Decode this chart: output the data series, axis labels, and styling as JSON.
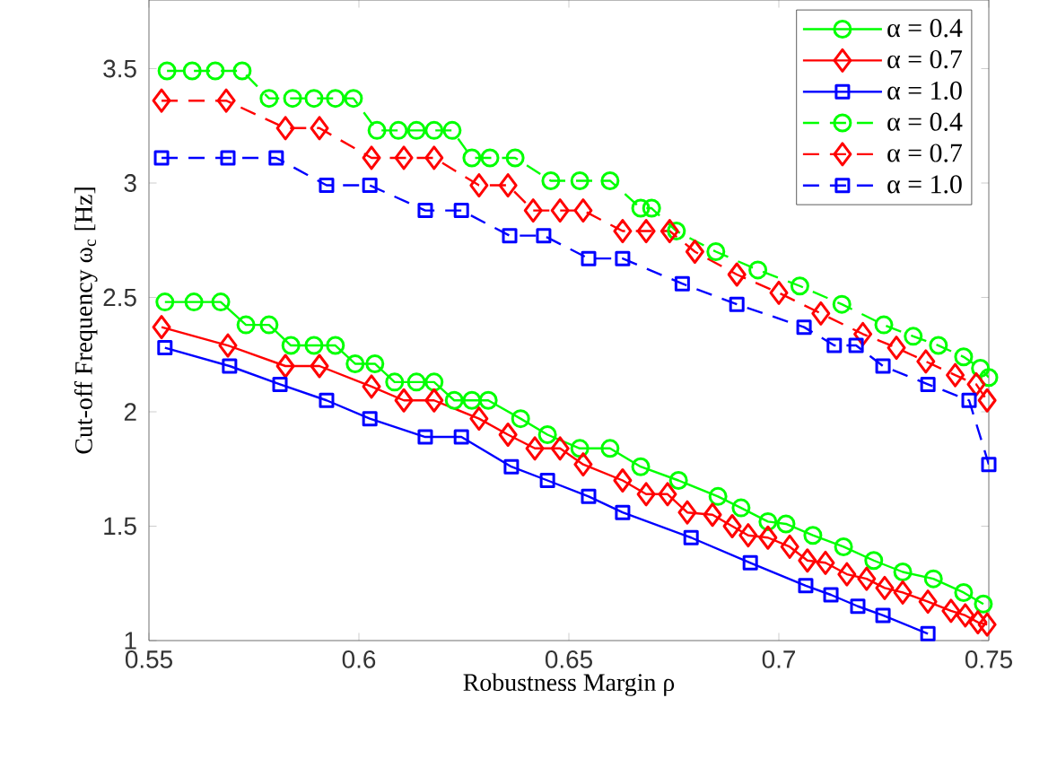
{
  "chart_data": {
    "type": "line",
    "xlabel": "Robustness Margin ρ",
    "ylabel": "Cut-off Frequency ω$_{c}$ [Hz]",
    "xlim": [
      0.55,
      0.75
    ],
    "ylim": [
      1,
      3.8
    ],
    "xticks": [
      0.55,
      0.6,
      0.65,
      0.7,
      0.75
    ],
    "yticks": [
      1,
      1.5,
      2,
      2.5,
      3,
      3.5
    ],
    "grid": false,
    "legend": "top right",
    "series": [
      {
        "name": "α = 0.4",
        "color": "#00ff00",
        "marker": "circle",
        "line_style": "solid",
        "x": [
          0.5538,
          0.5607,
          0.5671,
          0.5731,
          0.5786,
          0.5838,
          0.5893,
          0.5944,
          0.5991,
          0.6038,
          0.6085,
          0.6137,
          0.6179,
          0.6227,
          0.6269,
          0.6308,
          0.6385,
          0.6449,
          0.6526,
          0.6598,
          0.6671,
          0.6761,
          0.6855,
          0.691,
          0.6974,
          0.7017,
          0.7081,
          0.7154,
          0.7226,
          0.7295,
          0.7368,
          0.744,
          0.7487
        ],
        "values": [
          2.48,
          2.48,
          2.48,
          2.38,
          2.38,
          2.29,
          2.29,
          2.29,
          2.21,
          2.21,
          2.13,
          2.13,
          2.13,
          2.05,
          2.05,
          2.05,
          1.97,
          1.9,
          1.84,
          1.84,
          1.76,
          1.7,
          1.63,
          1.58,
          1.52,
          1.51,
          1.46,
          1.41,
          1.35,
          1.3,
          1.27,
          1.21,
          1.16
        ]
      },
      {
        "name": "α = 0.7",
        "color": "#ff0000",
        "marker": "diamond",
        "line_style": "solid",
        "x": [
          0.553,
          0.5688,
          0.5825,
          0.5906,
          0.603,
          0.6107,
          0.6179,
          0.6286,
          0.6355,
          0.6419,
          0.6479,
          0.6534,
          0.6628,
          0.6684,
          0.6735,
          0.6782,
          0.6842,
          0.6889,
          0.6927,
          0.6974,
          0.7026,
          0.7068,
          0.7111,
          0.7162,
          0.7209,
          0.7252,
          0.7295,
          0.7355,
          0.741,
          0.7444,
          0.7474,
          0.7496
        ],
        "values": [
          2.37,
          2.29,
          2.2,
          2.2,
          2.11,
          2.05,
          2.05,
          1.97,
          1.9,
          1.84,
          1.84,
          1.77,
          1.7,
          1.64,
          1.64,
          1.56,
          1.55,
          1.5,
          1.46,
          1.45,
          1.41,
          1.35,
          1.34,
          1.29,
          1.27,
          1.23,
          1.21,
          1.17,
          1.13,
          1.11,
          1.08,
          1.07
        ]
      },
      {
        "name": "α = 1.0",
        "color": "#0000ff",
        "marker": "square",
        "line_style": "solid",
        "x": [
          0.5538,
          0.5692,
          0.5812,
          0.5923,
          0.6026,
          0.6158,
          0.6244,
          0.6363,
          0.6449,
          0.6547,
          0.6628,
          0.6791,
          0.6932,
          0.7064,
          0.7124,
          0.7188,
          0.7248,
          0.7355
        ],
        "values": [
          2.28,
          2.2,
          2.12,
          2.05,
          1.97,
          1.89,
          1.89,
          1.76,
          1.7,
          1.63,
          1.56,
          1.45,
          1.34,
          1.24,
          1.2,
          1.15,
          1.11,
          1.03
        ]
      },
      {
        "name": "α = 0.4",
        "color": "#00ff00",
        "marker": "circle",
        "line_style": "dashed",
        "x": [
          0.5543,
          0.5603,
          0.5658,
          0.5722,
          0.5786,
          0.5842,
          0.5893,
          0.5944,
          0.5987,
          0.6043,
          0.6094,
          0.6137,
          0.6179,
          0.6222,
          0.6269,
          0.6312,
          0.6372,
          0.6457,
          0.6526,
          0.6598,
          0.6671,
          0.6697,
          0.6756,
          0.685,
          0.695,
          0.705,
          0.715,
          0.725,
          0.732,
          0.738,
          0.744,
          0.748,
          0.75
        ],
        "values": [
          3.49,
          3.49,
          3.49,
          3.49,
          3.37,
          3.37,
          3.37,
          3.37,
          3.37,
          3.23,
          3.23,
          3.23,
          3.23,
          3.23,
          3.11,
          3.11,
          3.11,
          3.01,
          3.01,
          3.01,
          2.89,
          2.89,
          2.79,
          2.7,
          2.62,
          2.55,
          2.47,
          2.38,
          2.33,
          2.29,
          2.24,
          2.19,
          2.15
        ]
      },
      {
        "name": "α = 0.7",
        "color": "#ff0000",
        "marker": "diamond",
        "line_style": "dashed",
        "x": [
          0.553,
          0.5684,
          0.5825,
          0.5906,
          0.603,
          0.6107,
          0.6179,
          0.6286,
          0.6355,
          0.6415,
          0.6479,
          0.6534,
          0.6628,
          0.6684,
          0.674,
          0.68,
          0.69,
          0.7,
          0.71,
          0.72,
          0.728,
          0.735,
          0.742,
          0.747,
          0.7496
        ],
        "values": [
          3.36,
          3.36,
          3.24,
          3.24,
          3.11,
          3.11,
          3.11,
          2.99,
          2.99,
          2.88,
          2.88,
          2.88,
          2.79,
          2.79,
          2.79,
          2.7,
          2.6,
          2.52,
          2.43,
          2.34,
          2.28,
          2.22,
          2.16,
          2.12,
          2.05
        ]
      },
      {
        "name": "α = 1.0",
        "color": "#0000ff",
        "marker": "square",
        "line_style": "dashed",
        "x": [
          0.553,
          0.5688,
          0.5803,
          0.5923,
          0.6026,
          0.6158,
          0.6244,
          0.6359,
          0.644,
          0.6547,
          0.6628,
          0.677,
          0.69,
          0.706,
          0.7132,
          0.7184,
          0.7248,
          0.7355,
          0.7453,
          0.75
        ],
        "values": [
          3.11,
          3.11,
          3.11,
          2.99,
          2.99,
          2.88,
          2.88,
          2.77,
          2.77,
          2.67,
          2.67,
          2.56,
          2.47,
          2.37,
          2.29,
          2.29,
          2.2,
          2.12,
          2.05,
          1.77
        ]
      }
    ]
  }
}
